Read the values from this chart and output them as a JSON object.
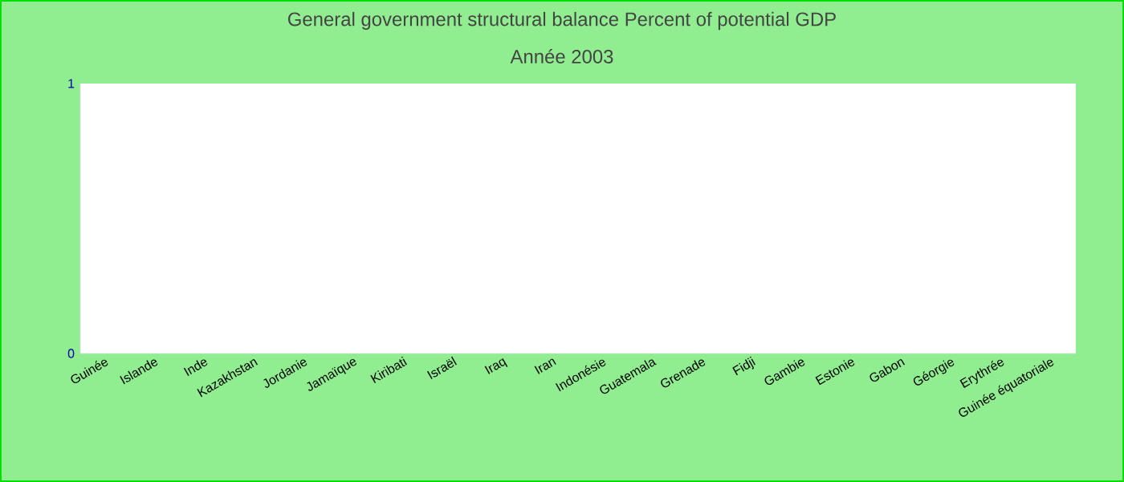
{
  "chart_data": {
    "type": "bar",
    "title": "General government structural balance  Percent of potential GDP",
    "subtitle": "Année 2003",
    "categories": [
      "Guinée",
      "Islande",
      "Inde",
      "Kazakhstan",
      "Jordanie",
      "Jamaïque",
      "Kiribati",
      "Israël",
      "Iraq",
      "Iran",
      "Indonésie",
      "Guatemala",
      "Grenade",
      "Fidji",
      "Gambie",
      "Estonie",
      "Gabon",
      "Géorgie",
      "Erythrée",
      "Guinée équatoriale"
    ],
    "values": [
      null,
      null,
      null,
      null,
      null,
      null,
      null,
      null,
      null,
      null,
      null,
      null,
      null,
      null,
      null,
      null,
      null,
      null,
      null,
      null
    ],
    "ylim": [
      0,
      1
    ],
    "yticks": [
      0,
      1
    ],
    "grid": false
  }
}
